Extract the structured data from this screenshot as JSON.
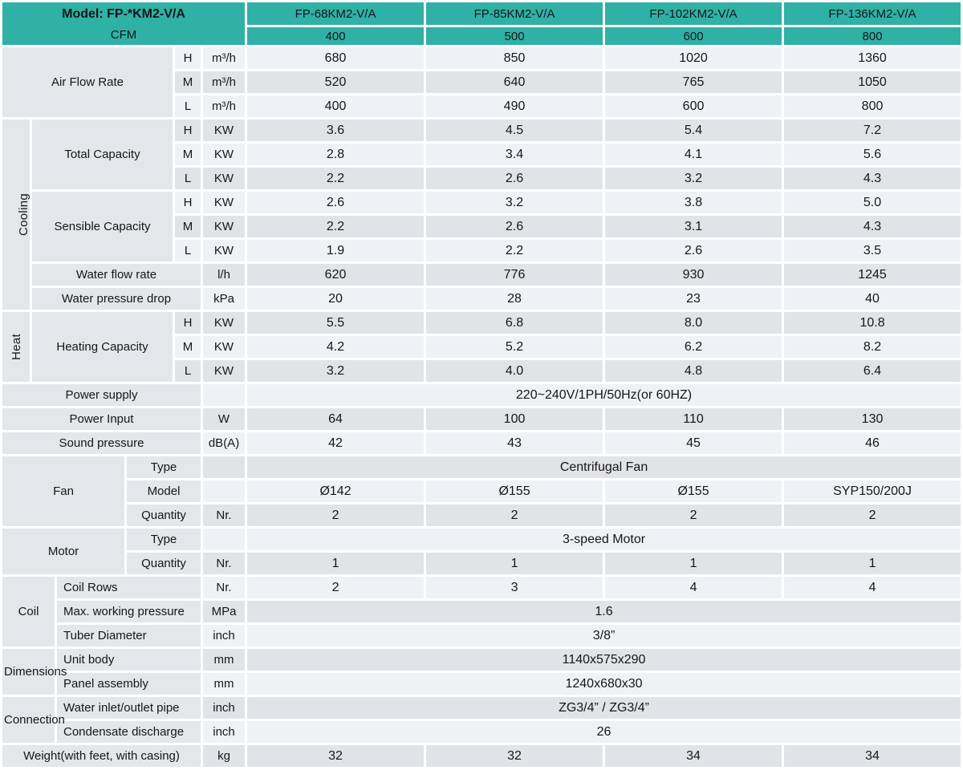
{
  "title": "Fan coil unit specification table",
  "colors": {
    "teal": "#2fb1a6",
    "row_light": "#eff2f5",
    "row_dark": "#e2e3e7",
    "label_bg": "#e4e6e9",
    "text": "#161616",
    "border": "#ffffff"
  },
  "header": {
    "model_label": "Model: FP-*KM2-V/A",
    "cfm_label": "CFM",
    "columns": [
      "FP-68KM2-V/A",
      "FP-85KM2-V/A",
      "FP-102KM2-V/A",
      "FP-136KM2-V/A"
    ],
    "cfm_values": [
      "400",
      "500",
      "600",
      "800"
    ]
  },
  "rows": [
    {
      "cells": [
        {
          "t": "Air Flow Rate",
          "k": "l",
          "cs": 4,
          "rs": 3
        },
        {
          "t": "H",
          "k": "h"
        },
        {
          "t": "m³/h",
          "k": "u"
        },
        {
          "t": "680",
          "k": "v"
        },
        {
          "t": "850",
          "k": "v"
        },
        {
          "t": "1020",
          "k": "v"
        },
        {
          "t": "1360",
          "k": "v"
        }
      ]
    },
    {
      "cells": [
        {
          "t": "M",
          "k": "h"
        },
        {
          "t": "m³/h",
          "k": "u"
        },
        {
          "t": "520",
          "k": "v"
        },
        {
          "t": "640",
          "k": "v"
        },
        {
          "t": "765",
          "k": "v"
        },
        {
          "t": "1050",
          "k": "v"
        }
      ]
    },
    {
      "cells": [
        {
          "t": "L",
          "k": "h"
        },
        {
          "t": "m³/h",
          "k": "u"
        },
        {
          "t": "400",
          "k": "v"
        },
        {
          "t": "490",
          "k": "v"
        },
        {
          "t": "600",
          "k": "v"
        },
        {
          "t": "800",
          "k": "v"
        }
      ]
    },
    {
      "cells": [
        {
          "t": "Cooling",
          "k": "g",
          "rs": 8,
          "vert": true
        },
        {
          "t": "Total Capacity",
          "k": "l",
          "cs": 3,
          "rs": 3
        },
        {
          "t": "H",
          "k": "h"
        },
        {
          "t": "KW",
          "k": "u"
        },
        {
          "t": "3.6",
          "k": "v"
        },
        {
          "t": "4.5",
          "k": "v"
        },
        {
          "t": "5.4",
          "k": "v"
        },
        {
          "t": "7.2",
          "k": "v"
        }
      ]
    },
    {
      "cells": [
        {
          "t": "M",
          "k": "h"
        },
        {
          "t": "KW",
          "k": "u"
        },
        {
          "t": "2.8",
          "k": "v"
        },
        {
          "t": "3.4",
          "k": "v"
        },
        {
          "t": "4.1",
          "k": "v"
        },
        {
          "t": "5.6",
          "k": "v"
        }
      ]
    },
    {
      "cells": [
        {
          "t": "L",
          "k": "h"
        },
        {
          "t": "KW",
          "k": "u"
        },
        {
          "t": "2.2",
          "k": "v"
        },
        {
          "t": "2.6",
          "k": "v"
        },
        {
          "t": "3.2",
          "k": "v"
        },
        {
          "t": "4.3",
          "k": "v"
        }
      ]
    },
    {
      "cells": [
        {
          "t": "Sensible Capacity",
          "k": "l",
          "cs": 3,
          "rs": 3
        },
        {
          "t": "H",
          "k": "h"
        },
        {
          "t": "KW",
          "k": "u"
        },
        {
          "t": "2.6",
          "k": "v"
        },
        {
          "t": "3.2",
          "k": "v"
        },
        {
          "t": "3.8",
          "k": "v"
        },
        {
          "t": "5.0",
          "k": "v"
        }
      ]
    },
    {
      "cells": [
        {
          "t": "M",
          "k": "h"
        },
        {
          "t": "KW",
          "k": "u"
        },
        {
          "t": "2.2",
          "k": "v"
        },
        {
          "t": "2.6",
          "k": "v"
        },
        {
          "t": "3.1",
          "k": "v"
        },
        {
          "t": "4.3",
          "k": "v"
        }
      ]
    },
    {
      "cells": [
        {
          "t": "L",
          "k": "h"
        },
        {
          "t": "KW",
          "k": "u"
        },
        {
          "t": "1.9",
          "k": "v"
        },
        {
          "t": "2.2",
          "k": "v"
        },
        {
          "t": "2.6",
          "k": "v"
        },
        {
          "t": "3.5",
          "k": "v"
        }
      ]
    },
    {
      "cells": [
        {
          "t": "Water flow rate",
          "k": "l",
          "cs": 4
        },
        {
          "t": "l/h",
          "k": "u"
        },
        {
          "t": "620",
          "k": "v"
        },
        {
          "t": "776",
          "k": "v"
        },
        {
          "t": "930",
          "k": "v"
        },
        {
          "t": "1245",
          "k": "v"
        }
      ]
    },
    {
      "cells": [
        {
          "t": "Water pressure drop",
          "k": "l",
          "cs": 4
        },
        {
          "t": "kPa",
          "k": "u"
        },
        {
          "t": "20",
          "k": "v"
        },
        {
          "t": "28",
          "k": "v"
        },
        {
          "t": "23",
          "k": "v"
        },
        {
          "t": "40",
          "k": "v"
        }
      ]
    },
    {
      "cells": [
        {
          "t": "Heat",
          "k": "g",
          "rs": 3,
          "vert": true
        },
        {
          "t": "Heating Capacity",
          "k": "l",
          "cs": 3,
          "rs": 3
        },
        {
          "t": "H",
          "k": "h"
        },
        {
          "t": "KW",
          "k": "u"
        },
        {
          "t": "5.5",
          "k": "v"
        },
        {
          "t": "6.8",
          "k": "v"
        },
        {
          "t": "8.0",
          "k": "v"
        },
        {
          "t": "10.8",
          "k": "v"
        }
      ]
    },
    {
      "cells": [
        {
          "t": "M",
          "k": "h"
        },
        {
          "t": "KW",
          "k": "u"
        },
        {
          "t": "4.2",
          "k": "v"
        },
        {
          "t": "5.2",
          "k": "v"
        },
        {
          "t": "6.2",
          "k": "v"
        },
        {
          "t": "8.2",
          "k": "v"
        }
      ]
    },
    {
      "cells": [
        {
          "t": "L",
          "k": "h"
        },
        {
          "t": "KW",
          "k": "u"
        },
        {
          "t": "3.2",
          "k": "v"
        },
        {
          "t": "4.0",
          "k": "v"
        },
        {
          "t": "4.8",
          "k": "v"
        },
        {
          "t": "6.4",
          "k": "v"
        }
      ]
    },
    {
      "cells": [
        {
          "t": "Power supply",
          "k": "l",
          "cs": 5
        },
        {
          "t": "",
          "k": "u"
        },
        {
          "t": "220~240V/1PH/50Hz(or 60HZ)",
          "k": "m",
          "cs": 4
        }
      ]
    },
    {
      "cells": [
        {
          "t": "Power Input",
          "k": "l",
          "cs": 5
        },
        {
          "t": "W",
          "k": "u"
        },
        {
          "t": "64",
          "k": "v"
        },
        {
          "t": "100",
          "k": "v"
        },
        {
          "t": "110",
          "k": "v"
        },
        {
          "t": "130",
          "k": "v"
        }
      ]
    },
    {
      "cells": [
        {
          "t": "Sound pressure",
          "k": "l",
          "cs": 5
        },
        {
          "t": "dB(A)",
          "k": "u"
        },
        {
          "t": "42",
          "k": "v"
        },
        {
          "t": "43",
          "k": "v"
        },
        {
          "t": "45",
          "k": "v"
        },
        {
          "t": "46",
          "k": "v"
        }
      ]
    },
    {
      "cells": [
        {
          "t": "Fan",
          "k": "g",
          "cs": 3,
          "rs": 3
        },
        {
          "t": "Type",
          "k": "l",
          "cs": 2
        },
        {
          "t": "",
          "k": "u"
        },
        {
          "t": "Centrifugal Fan",
          "k": "m",
          "cs": 4
        }
      ]
    },
    {
      "cells": [
        {
          "t": "Model",
          "k": "l",
          "cs": 2
        },
        {
          "t": "",
          "k": "u"
        },
        {
          "t": "Ø142",
          "k": "v"
        },
        {
          "t": "Ø155",
          "k": "v"
        },
        {
          "t": "Ø155",
          "k": "v"
        },
        {
          "t": "SYP150/200J",
          "k": "v"
        }
      ]
    },
    {
      "cells": [
        {
          "t": "Quantity",
          "k": "l",
          "cs": 2
        },
        {
          "t": "Nr.",
          "k": "u"
        },
        {
          "t": "2",
          "k": "v"
        },
        {
          "t": "2",
          "k": "v"
        },
        {
          "t": "2",
          "k": "v"
        },
        {
          "t": "2",
          "k": "v"
        }
      ]
    },
    {
      "cells": [
        {
          "t": "Motor",
          "k": "g",
          "cs": 3,
          "rs": 2
        },
        {
          "t": "Type",
          "k": "l",
          "cs": 2
        },
        {
          "t": "",
          "k": "u"
        },
        {
          "t": "3-speed Motor",
          "k": "m",
          "cs": 4
        }
      ]
    },
    {
      "cells": [
        {
          "t": "Quantity",
          "k": "l",
          "cs": 2
        },
        {
          "t": "Nr.",
          "k": "u"
        },
        {
          "t": "1",
          "k": "v"
        },
        {
          "t": "1",
          "k": "v"
        },
        {
          "t": "1",
          "k": "v"
        },
        {
          "t": "1",
          "k": "v"
        }
      ]
    },
    {
      "cells": [
        {
          "t": "Coil",
          "k": "g",
          "cs": 2,
          "rs": 3
        },
        {
          "t": "Coil Rows",
          "k": "ll",
          "cs": 3
        },
        {
          "t": "Nr.",
          "k": "u"
        },
        {
          "t": "2",
          "k": "v"
        },
        {
          "t": "3",
          "k": "v"
        },
        {
          "t": "4",
          "k": "v"
        },
        {
          "t": "4",
          "k": "v"
        }
      ]
    },
    {
      "cells": [
        {
          "t": "Max. working pressure",
          "k": "ll",
          "cs": 3
        },
        {
          "t": "MPa",
          "k": "u"
        },
        {
          "t": "1.6",
          "k": "m",
          "cs": 4
        }
      ]
    },
    {
      "cells": [
        {
          "t": "Tuber Diameter",
          "k": "ll",
          "cs": 3
        },
        {
          "t": "inch",
          "k": "u"
        },
        {
          "t": "3/8”",
          "k": "m",
          "cs": 4
        }
      ]
    },
    {
      "cells": [
        {
          "t": "Dimensions",
          "k": "g",
          "cs": 2,
          "rs": 2,
          "al": "left"
        },
        {
          "t": "Unit body",
          "k": "ll",
          "cs": 3
        },
        {
          "t": "mm",
          "k": "u"
        },
        {
          "t": "1140x575x290",
          "k": "m",
          "cs": 4
        }
      ]
    },
    {
      "cells": [
        {
          "t": "Panel assembly",
          "k": "ll",
          "cs": 3
        },
        {
          "t": "mm",
          "k": "u"
        },
        {
          "t": "1240x680x30",
          "k": "m",
          "cs": 4
        }
      ]
    },
    {
      "cells": [
        {
          "t": "Connection",
          "k": "g",
          "cs": 2,
          "rs": 2,
          "al": "left"
        },
        {
          "t": "Water inlet/outlet pipe",
          "k": "ll",
          "cs": 3
        },
        {
          "t": "inch",
          "k": "u"
        },
        {
          "t": "ZG3/4” / ZG3/4”",
          "k": "m",
          "cs": 4
        }
      ]
    },
    {
      "cells": [
        {
          "t": "Condensate discharge",
          "k": "ll",
          "cs": 3
        },
        {
          "t": "inch",
          "k": "u"
        },
        {
          "t": "26",
          "k": "m",
          "cs": 4
        }
      ]
    },
    {
      "cells": [
        {
          "t": "Weight(with feet, with casing)",
          "k": "l",
          "cs": 5
        },
        {
          "t": "kg",
          "k": "u"
        },
        {
          "t": "32",
          "k": "v"
        },
        {
          "t": "32",
          "k": "v"
        },
        {
          "t": "34",
          "k": "v"
        },
        {
          "t": "34",
          "k": "v"
        }
      ]
    }
  ]
}
